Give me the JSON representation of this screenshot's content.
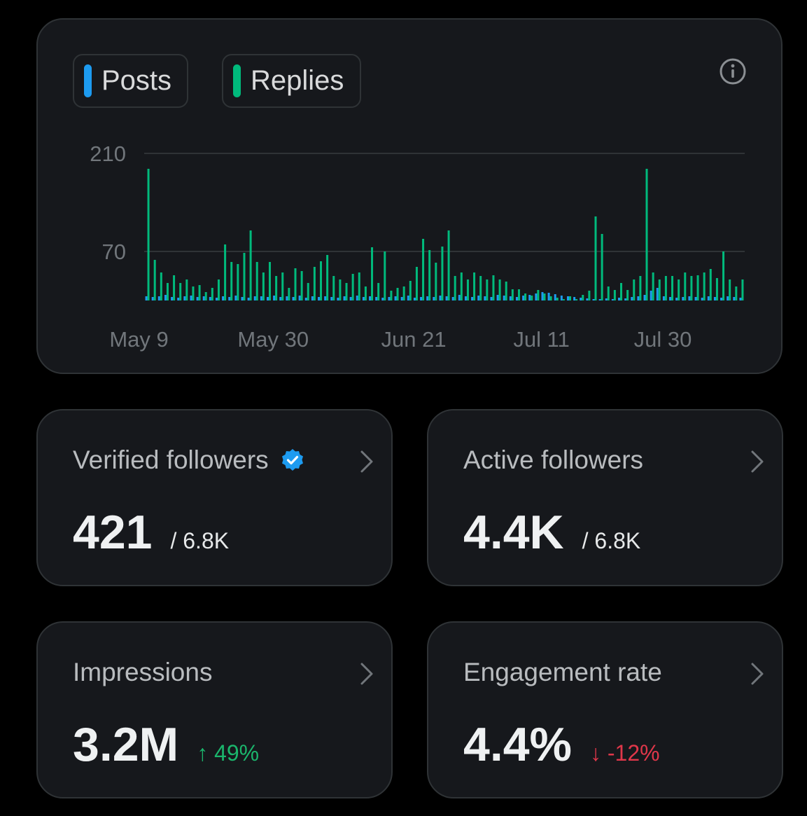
{
  "legend": {
    "posts_label": "Posts",
    "replies_label": "Replies",
    "posts_color": "#1d9bf0",
    "replies_color": "#00ba7c"
  },
  "chart_data": {
    "type": "bar",
    "stacked": true,
    "y_ticks": [
      "210",
      "70"
    ],
    "y_tick_values": [
      210,
      70
    ],
    "x_ticks": [
      "May 9",
      "May 30",
      "Jun 21",
      "Jul 11",
      "Jul 30"
    ],
    "x_tick_dates": [
      "2024-05-09",
      "2024-05-30",
      "2024-06-21",
      "2024-07-11",
      "2024-07-30"
    ],
    "grid": true,
    "series": [
      {
        "name": "Posts",
        "color": "#1d9bf0",
        "dates": [
          "2024-05-09",
          "2024-05-10",
          "2024-05-11",
          "2024-05-12",
          "2024-05-13",
          "2024-05-14",
          "2024-05-15",
          "2024-05-16",
          "2024-05-17",
          "2024-05-18",
          "2024-05-19",
          "2024-05-20",
          "2024-05-21",
          "2024-05-22",
          "2024-05-23",
          "2024-05-24",
          "2024-05-25",
          "2024-05-26",
          "2024-05-27",
          "2024-05-28",
          "2024-05-29",
          "2024-05-30",
          "2024-05-31",
          "2024-06-01",
          "2024-06-02",
          "2024-06-03",
          "2024-06-04",
          "2024-06-05",
          "2024-06-06",
          "2024-06-07",
          "2024-06-08",
          "2024-06-09",
          "2024-06-10",
          "2024-06-11",
          "2024-06-12",
          "2024-06-13",
          "2024-06-14",
          "2024-06-15",
          "2024-06-16",
          "2024-06-17",
          "2024-06-18",
          "2024-06-19",
          "2024-06-20",
          "2024-06-21",
          "2024-06-22",
          "2024-06-23",
          "2024-06-24",
          "2024-06-25",
          "2024-06-26",
          "2024-06-27",
          "2024-06-28",
          "2024-06-29",
          "2024-06-30",
          "2024-07-01",
          "2024-07-02",
          "2024-07-03",
          "2024-07-04",
          "2024-07-05",
          "2024-07-06",
          "2024-07-07",
          "2024-07-08",
          "2024-07-09",
          "2024-07-10",
          "2024-07-11",
          "2024-07-12",
          "2024-07-13",
          "2024-07-14",
          "2024-07-15",
          "2024-07-16",
          "2024-07-17",
          "2024-07-18",
          "2024-07-19",
          "2024-07-20",
          "2024-07-21",
          "2024-07-22",
          "2024-07-23",
          "2024-07-24",
          "2024-07-25",
          "2024-07-26",
          "2024-07-27",
          "2024-07-28",
          "2024-07-29",
          "2024-07-30",
          "2024-07-31",
          "2024-08-01",
          "2024-08-02",
          "2024-08-03",
          "2024-08-04",
          "2024-08-05",
          "2024-08-06",
          "2024-08-07",
          "2024-08-08",
          "2024-08-09",
          "2024-08-10"
        ],
        "values": [
          6,
          5,
          6,
          8,
          5,
          4,
          6,
          7,
          5,
          6,
          5,
          4,
          6,
          5,
          7,
          5,
          4,
          6,
          6,
          5,
          7,
          5,
          6,
          5,
          7,
          4,
          6,
          5,
          6,
          5,
          4,
          6,
          5,
          7,
          5,
          6,
          5,
          4,
          5,
          6,
          5,
          7,
          4,
          5,
          6,
          5,
          7,
          6,
          5,
          8,
          6,
          5,
          7,
          6,
          5,
          8,
          7,
          6,
          5,
          7,
          8,
          10,
          12,
          11,
          9,
          7,
          6,
          5,
          4,
          3,
          2,
          2,
          3,
          2,
          4,
          3,
          5,
          6,
          8,
          14,
          18,
          6,
          5,
          4,
          5,
          6,
          5,
          4,
          6,
          5,
          4,
          6,
          5,
          4
        ]
      },
      {
        "name": "Replies",
        "color": "#00ba7c",
        "dates": [
          "2024-05-09",
          "2024-05-10",
          "2024-05-11",
          "2024-05-12",
          "2024-05-13",
          "2024-05-14",
          "2024-05-15",
          "2024-05-16",
          "2024-05-17",
          "2024-05-18",
          "2024-05-19",
          "2024-05-20",
          "2024-05-21",
          "2024-05-22",
          "2024-05-23",
          "2024-05-24",
          "2024-05-25",
          "2024-05-26",
          "2024-05-27",
          "2024-05-28",
          "2024-05-29",
          "2024-05-30",
          "2024-05-31",
          "2024-06-01",
          "2024-06-02",
          "2024-06-03",
          "2024-06-04",
          "2024-06-05",
          "2024-06-06",
          "2024-06-07",
          "2024-06-08",
          "2024-06-09",
          "2024-06-10",
          "2024-06-11",
          "2024-06-12",
          "2024-06-13",
          "2024-06-14",
          "2024-06-15",
          "2024-06-16",
          "2024-06-17",
          "2024-06-18",
          "2024-06-19",
          "2024-06-20",
          "2024-06-21",
          "2024-06-22",
          "2024-06-23",
          "2024-06-24",
          "2024-06-25",
          "2024-06-26",
          "2024-06-27",
          "2024-06-28",
          "2024-06-29",
          "2024-06-30",
          "2024-07-01",
          "2024-07-02",
          "2024-07-03",
          "2024-07-04",
          "2024-07-05",
          "2024-07-06",
          "2024-07-07",
          "2024-07-08",
          "2024-07-09",
          "2024-07-10",
          "2024-07-11",
          "2024-07-12",
          "2024-07-13",
          "2024-07-14",
          "2024-07-15",
          "2024-07-16",
          "2024-07-17",
          "2024-07-18",
          "2024-07-19",
          "2024-07-20",
          "2024-07-21",
          "2024-07-22",
          "2024-07-23",
          "2024-07-24",
          "2024-07-25",
          "2024-07-26",
          "2024-07-27",
          "2024-07-28",
          "2024-07-29",
          "2024-07-30",
          "2024-07-31",
          "2024-08-01",
          "2024-08-02",
          "2024-08-03",
          "2024-08-04",
          "2024-08-05",
          "2024-08-06",
          "2024-08-07",
          "2024-08-08",
          "2024-08-09",
          "2024-08-10"
        ],
        "values": [
          188,
          58,
          40,
          25,
          36,
          25,
          30,
          20,
          22,
          12,
          18,
          30,
          80,
          55,
          52,
          68,
          100,
          55,
          40,
          55,
          35,
          40,
          18,
          46,
          42,
          25,
          48,
          56,
          65,
          35,
          30,
          25,
          38,
          40,
          20,
          76,
          25,
          70,
          14,
          18,
          20,
          28,
          48,
          88,
          72,
          54,
          77,
          100,
          35,
          40,
          30,
          40,
          35,
          30,
          36,
          30,
          27,
          16,
          16,
          10,
          7,
          15,
          10,
          6,
          4,
          2,
          6,
          2,
          8,
          14,
          120,
          95,
          20,
          15,
          25,
          15,
          30,
          35,
          188,
          40,
          30,
          35,
          35,
          30,
          40,
          35,
          36,
          40,
          45,
          32,
          70,
          30,
          20,
          30
        ]
      }
    ],
    "y_max_guess": 230
  },
  "cards": {
    "verified": {
      "title": "Verified followers",
      "value": "421",
      "sub": "/ 6.8K"
    },
    "active": {
      "title": "Active followers",
      "value": "4.4K",
      "sub": "/ 6.8K"
    },
    "impressions": {
      "title": "Impressions",
      "value": "3.2M",
      "delta": "↑ 49%",
      "delta_color": "#1bb56c"
    },
    "engagement": {
      "title": "Engagement rate",
      "value": "4.4%",
      "delta": "↓ -12%",
      "delta_color": "#e0374a"
    }
  },
  "icons": {
    "info": "info-icon",
    "verified": "verified-badge-icon",
    "chevron": "chevron-right-icon"
  }
}
